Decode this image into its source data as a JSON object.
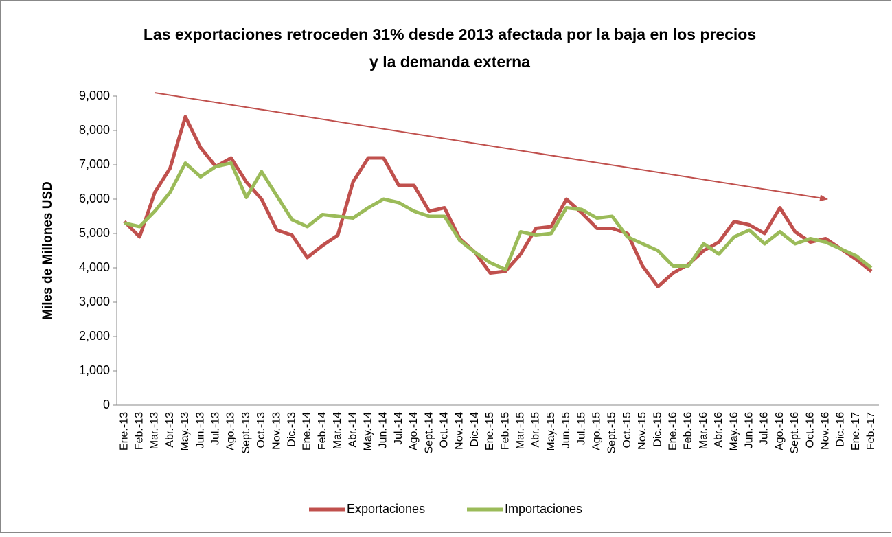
{
  "chart_data": {
    "type": "line",
    "title": [
      "Las exportaciones retroceden 31% desde 2013 afectada por la baja en los precios",
      "y la demanda externa"
    ],
    "y_label": "Miles de Millones USD",
    "categories": [
      "Ene.-13",
      "Feb.-13",
      "Mar.-13",
      "Abr.-13",
      "May.-13",
      "Jun.-13",
      "Jul.-13",
      "Ago.-13",
      "Sept.-13",
      "Oct.-13",
      "Nov.-13",
      "Dic.-13",
      "Ene.-14",
      "Feb.-14",
      "Mar.-14",
      "Abr.-14",
      "May.-14",
      "Jun.-14",
      "Jul.-14",
      "Ago.-14",
      "Sept.-14",
      "Oct.-14",
      "Nov.-14",
      "Dic.-14",
      "Ene.-15",
      "Feb.-15",
      "Mar.-15",
      "Abr.-15",
      "May.-15",
      "Jun.-15",
      "Jul.-15",
      "Ago.-15",
      "Sept.-15",
      "Oct.-15",
      "Nov.-15",
      "Dic.-15",
      "Ene.-16",
      "Feb.-16",
      "Mar.-16",
      "Abr.-16",
      "May.-16",
      "Jun.-16",
      "Jul.-16",
      "Ago.-16",
      "Sept.-16",
      "Oct.-16",
      "Nov.-16",
      "Dic.-16",
      "Ene.-17",
      "Feb.-17"
    ],
    "series": [
      {
        "name": "Exportaciones",
        "color": "#c0504d",
        "values": [
          5350,
          4900,
          6200,
          6900,
          8400,
          7500,
          6950,
          7200,
          6500,
          6000,
          5100,
          4950,
          4300,
          4650,
          4950,
          6500,
          7200,
          7200,
          6400,
          6400,
          5650,
          5750,
          4850,
          4450,
          3850,
          3900,
          4400,
          5150,
          5200,
          6000,
          5600,
          5150,
          5150,
          5000,
          4050,
          3450,
          3850,
          4100,
          4500,
          4750,
          5350,
          5250,
          5000,
          5750,
          5050,
          4750,
          4850,
          4550,
          4250,
          3900
        ]
      },
      {
        "name": "Importaciones",
        "color": "#9bbb59",
        "values": [
          5300,
          5200,
          5650,
          6200,
          7050,
          6650,
          6950,
          7050,
          6050,
          6800,
          6100,
          5400,
          5200,
          5550,
          5500,
          5450,
          5750,
          6000,
          5900,
          5650,
          5500,
          5500,
          4800,
          4450,
          4150,
          3950,
          5050,
          4950,
          5000,
          5750,
          5700,
          5450,
          5500,
          4900,
          4700,
          4500,
          4050,
          4050,
          4700,
          4400,
          4900,
          5100,
          4700,
          5050,
          4700,
          4850,
          4750,
          4550,
          4350,
          4000
        ]
      }
    ],
    "ylim": [
      0,
      9000
    ],
    "yticks": [
      0,
      {
        "value": 1000,
        "label": "1,000"
      },
      {
        "value": 2000,
        "label": "2,000"
      },
      {
        "value": 3000,
        "label": "3,000"
      },
      {
        "value": 4000,
        "label": "4,000"
      },
      {
        "value": 5000,
        "label": "5,000"
      },
      {
        "value": 6000,
        "label": "6,000"
      },
      {
        "value": 7000,
        "label": "7,000"
      },
      {
        "value": 8000,
        "label": "8,000"
      },
      {
        "value": 9000,
        "label": "9,000"
      }
    ],
    "legend": "bottom"
  }
}
